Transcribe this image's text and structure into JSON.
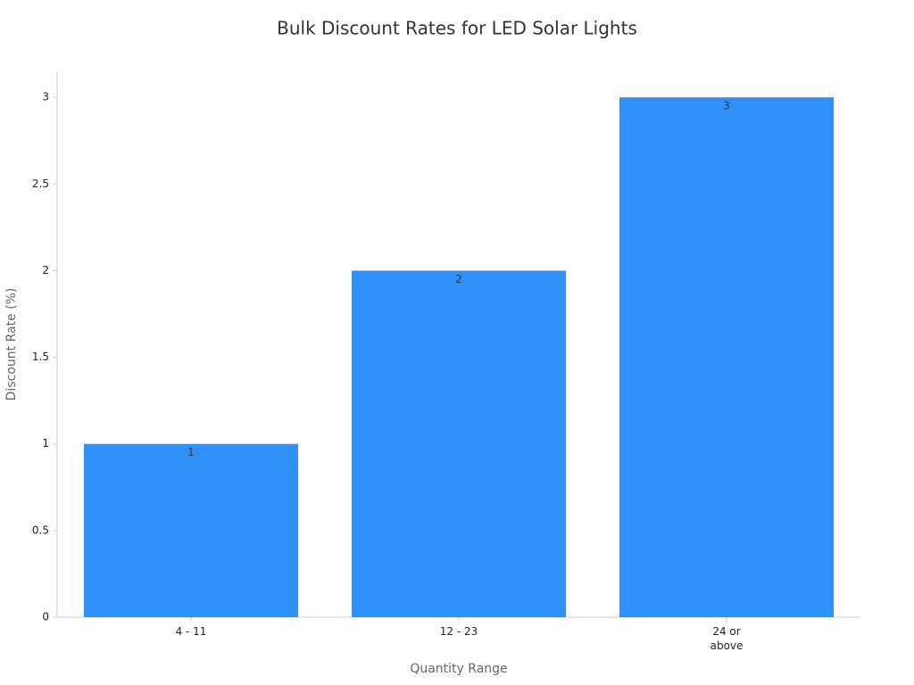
{
  "chart_data": {
    "type": "bar",
    "title": "Bulk Discount Rates for LED Solar Lights",
    "x_label": "Quantity Range",
    "y_label": "Discount Rate (%)",
    "categories": [
      "4 - 11",
      "12 - 23",
      "24 or above"
    ],
    "values": [
      1,
      2,
      3
    ],
    "color": "#2f91f7",
    "ylim": [
      0,
      3.15
    ],
    "yticks": [
      0,
      0.5,
      1,
      1.5,
      2,
      2.5,
      3
    ],
    "grid": false
  }
}
